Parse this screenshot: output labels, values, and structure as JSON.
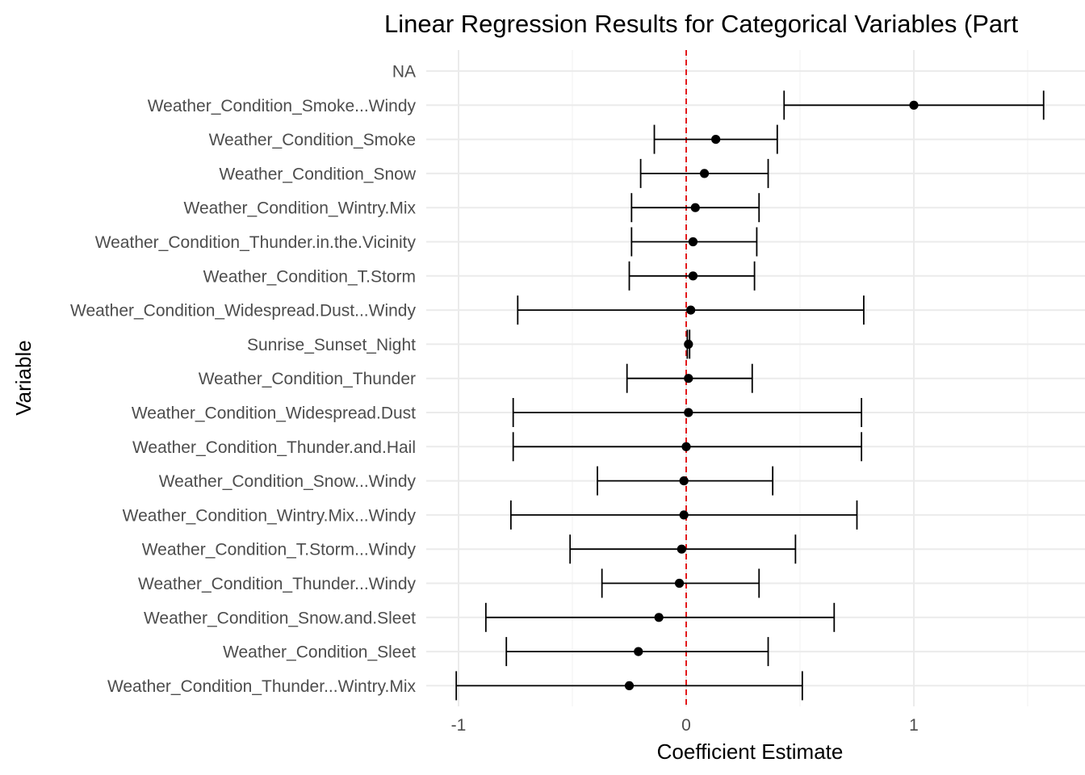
{
  "chart_data": {
    "type": "forest",
    "title": "Linear Regression Results for Categorical Variables (Part",
    "xlabel": "Coefficient Estimate",
    "ylabel": "Variable",
    "xlim": [
      -1.1,
      1.75
    ],
    "xticks": [
      -1,
      0,
      1
    ],
    "xtick_labels": [
      "-1",
      "0",
      "1"
    ],
    "reference_line": {
      "x": 0,
      "color": "#e31a1c",
      "style": "dashed"
    },
    "point_color": "#000000",
    "grid": true,
    "rows": [
      {
        "label": "NA",
        "estimate": null,
        "lower": null,
        "upper": null
      },
      {
        "label": "Weather_Condition_Smoke...Windy",
        "estimate": 1.0,
        "lower": 0.43,
        "upper": 1.57
      },
      {
        "label": "Weather_Condition_Smoke",
        "estimate": 0.13,
        "lower": -0.14,
        "upper": 0.4
      },
      {
        "label": "Weather_Condition_Snow",
        "estimate": 0.08,
        "lower": -0.2,
        "upper": 0.36
      },
      {
        "label": "Weather_Condition_Wintry.Mix",
        "estimate": 0.04,
        "lower": -0.24,
        "upper": 0.32
      },
      {
        "label": "Weather_Condition_Thunder.in.the.Vicinity",
        "estimate": 0.03,
        "lower": -0.24,
        "upper": 0.31
      },
      {
        "label": "Weather_Condition_T.Storm",
        "estimate": 0.03,
        "lower": -0.25,
        "upper": 0.3
      },
      {
        "label": "Weather_Condition_Widespread.Dust...Windy",
        "estimate": 0.02,
        "lower": -0.74,
        "upper": 0.78
      },
      {
        "label": "Sunrise_Sunset_Night",
        "estimate": 0.01,
        "lower": 0.005,
        "upper": 0.015
      },
      {
        "label": "Weather_Condition_Thunder",
        "estimate": 0.01,
        "lower": -0.26,
        "upper": 0.29
      },
      {
        "label": "Weather_Condition_Widespread.Dust",
        "estimate": 0.01,
        "lower": -0.76,
        "upper": 0.77
      },
      {
        "label": "Weather_Condition_Thunder.and.Hail",
        "estimate": 0.0,
        "lower": -0.76,
        "upper": 0.77
      },
      {
        "label": "Weather_Condition_Snow...Windy",
        "estimate": -0.01,
        "lower": -0.39,
        "upper": 0.38
      },
      {
        "label": "Weather_Condition_Wintry.Mix...Windy",
        "estimate": -0.01,
        "lower": -0.77,
        "upper": 0.75
      },
      {
        "label": "Weather_Condition_T.Storm...Windy",
        "estimate": -0.02,
        "lower": -0.51,
        "upper": 0.48
      },
      {
        "label": "Weather_Condition_Thunder...Windy",
        "estimate": -0.03,
        "lower": -0.37,
        "upper": 0.32
      },
      {
        "label": "Weather_Condition_Snow.and.Sleet",
        "estimate": -0.12,
        "lower": -0.88,
        "upper": 0.65
      },
      {
        "label": "Weather_Condition_Sleet",
        "estimate": -0.21,
        "lower": -0.79,
        "upper": 0.36
      },
      {
        "label": "Weather_Condition_Thunder...Wintry.Mix",
        "estimate": -0.25,
        "lower": -1.01,
        "upper": 0.51
      }
    ]
  }
}
